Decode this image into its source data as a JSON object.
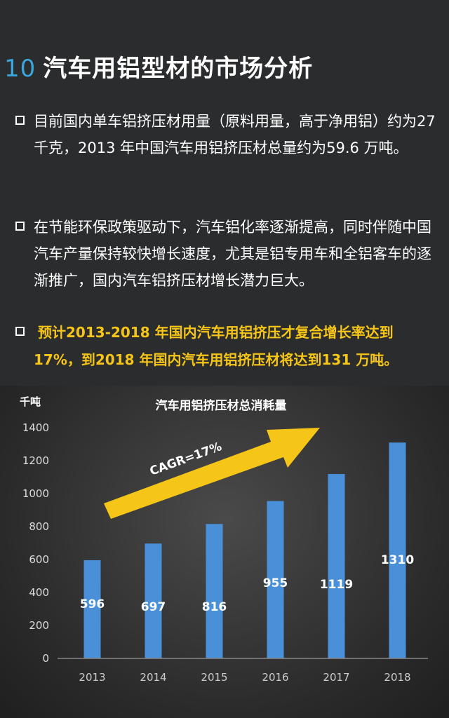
{
  "header": {
    "number": "10",
    "title": "汽车用铝型材的市场分析"
  },
  "bullets": [
    "目前国内单车铝挤压材用量（原料用量，高于净用铝）约为27 千克，2013 年中国汽车用铝挤压材总量约为59.6 万吨。",
    "在节能环保政策驱动下，汽车铝化率逐渐提高，同时伴随中国汽车产量保持较快增长速度，尤其是铝专用车和全铝客车的逐渐推广，国内汽车铝挤压材增长潜力巨大。",
    "预计2013-2018 年国内汽车用铝挤压才复合增长率达到17%，到2018 年国内汽车用铝挤压材将达到131 万吨。"
  ],
  "colors": {
    "accent": "#3aa6dc",
    "highlight": "#f5c518",
    "bar": "#4a90d9",
    "arrow": "#f5c518"
  },
  "chart_data": {
    "type": "bar",
    "title": "汽车用铝挤压材总消耗量",
    "ylabel": "千吨",
    "xlabel": "",
    "categories": [
      "2013",
      "2014",
      "2015",
      "2016",
      "2017",
      "2018"
    ],
    "values": [
      596,
      697,
      816,
      955,
      1119,
      1310
    ],
    "ylim": [
      0,
      1400
    ],
    "yticks": [
      0,
      200,
      400,
      600,
      800,
      1000,
      1200,
      1400
    ],
    "grid": false,
    "annotation": "CAGR=17%"
  }
}
